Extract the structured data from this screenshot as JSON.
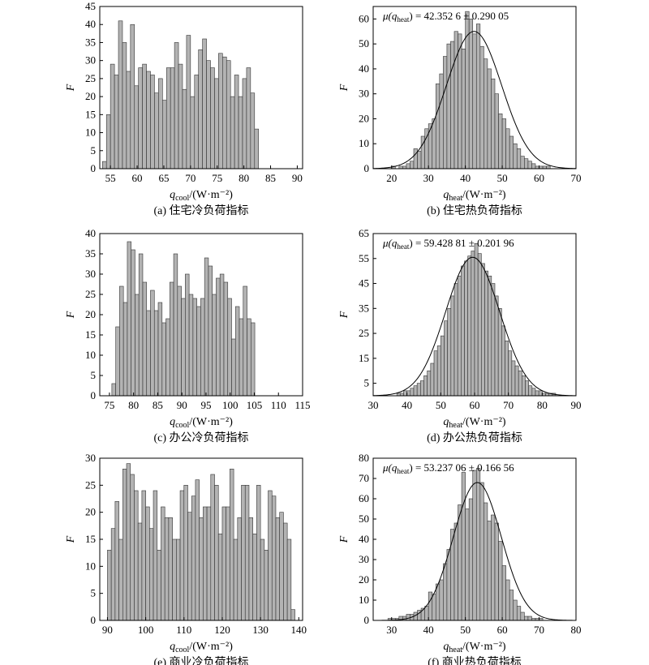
{
  "colors": {
    "bar_fill": "#b3b3b3",
    "bar_stroke": "#333333",
    "axis": "#000000",
    "fit_curve": "#000000"
  },
  "charts": [
    {
      "caption": "(a) 住宅冷负荷指标",
      "ylabel": "F",
      "xlabel_main": "q",
      "xlabel_sub": "cool",
      "xlabel_unit": "/(W·m⁻²)",
      "annotation_main": "",
      "annotation_sub": "",
      "annotation_value": "",
      "x_ticks": [
        "55",
        "60",
        "65",
        "70",
        "75",
        "80",
        "85",
        "90"
      ],
      "y_ticks": [
        "0",
        "5",
        "10",
        "15",
        "20",
        "25",
        "30",
        "35",
        "40",
        "45"
      ]
    },
    {
      "caption": "(b) 住宅热负荷指标",
      "ylabel": "F",
      "xlabel_main": "q",
      "xlabel_sub": "heat",
      "xlabel_unit": "/(W·m⁻²)",
      "annotation_main": "μ(q",
      "annotation_sub": "heat",
      "annotation_value": ") = 42.352 6 ± 0.290 05",
      "x_ticks": [
        "20",
        "30",
        "40",
        "50",
        "60",
        "70"
      ],
      "y_ticks": [
        "0",
        "10",
        "20",
        "30",
        "40",
        "50",
        "60"
      ]
    },
    {
      "caption": "(c) 办公冷负荷指标",
      "ylabel": "F",
      "xlabel_main": "q",
      "xlabel_sub": "cool",
      "xlabel_unit": "/(W·m⁻²)",
      "annotation_main": "",
      "annotation_sub": "",
      "annotation_value": "",
      "x_ticks": [
        "75",
        "80",
        "85",
        "90",
        "95",
        "100",
        "105",
        "110",
        "115"
      ],
      "y_ticks": [
        "0",
        "5",
        "10",
        "15",
        "20",
        "25",
        "30",
        "35",
        "40"
      ]
    },
    {
      "caption": "(d) 办公热负荷指标",
      "ylabel": "F",
      "xlabel_main": "q",
      "xlabel_sub": "heat",
      "xlabel_unit": "/(W·m⁻²)",
      "annotation_main": "μ(q",
      "annotation_sub": "heat",
      "annotation_value": ") = 59.428 81 ± 0.201 96",
      "x_ticks": [
        "30",
        "40",
        "50",
        "60",
        "70",
        "80",
        "90"
      ],
      "y_ticks": [
        "5",
        "15",
        "25",
        "35",
        "45",
        "55",
        "65"
      ]
    },
    {
      "caption": "(e) 商业冷负荷指标",
      "ylabel": "F",
      "xlabel_main": "q",
      "xlabel_sub": "cool",
      "xlabel_unit": "/(W·m⁻²)",
      "annotation_main": "",
      "annotation_sub": "",
      "annotation_value": "",
      "x_ticks": [
        "90",
        "100",
        "110",
        "120",
        "130",
        "140"
      ],
      "y_ticks": [
        "0",
        "5",
        "10",
        "15",
        "20",
        "25",
        "30"
      ]
    },
    {
      "caption": "(f) 商业热负荷指标",
      "ylabel": "F",
      "xlabel_main": "q",
      "xlabel_sub": "heat",
      "xlabel_unit": "/(W·m⁻²)",
      "annotation_main": "μ(q",
      "annotation_sub": "heat",
      "annotation_value": ") = 53.237 06 ± 0.166 56",
      "x_ticks": [
        "30",
        "40",
        "50",
        "60",
        "70",
        "80"
      ],
      "y_ticks": [
        "0",
        "10",
        "20",
        "30",
        "40",
        "50",
        "60",
        "70",
        "80"
      ]
    }
  ],
  "chart_data": [
    {
      "type": "bar",
      "xlim": [
        53,
        91
      ],
      "ylim": [
        0,
        45
      ],
      "x_tick_values": [
        55,
        60,
        65,
        70,
        75,
        80,
        85,
        90
      ],
      "y_tick_values": [
        0,
        5,
        10,
        15,
        20,
        25,
        30,
        35,
        40,
        45
      ],
      "bin_start": 53.5,
      "bin_width": 0.75,
      "values": [
        2,
        15,
        29,
        26,
        41,
        35,
        27,
        40,
        23,
        28,
        29,
        27,
        26,
        21,
        25,
        19,
        28,
        28,
        35,
        29,
        22,
        37,
        20,
        26,
        33,
        36,
        30,
        28,
        25,
        32,
        31,
        30,
        20,
        26,
        20,
        25,
        28,
        21,
        11
      ]
    },
    {
      "type": "bar",
      "xlim": [
        15,
        70
      ],
      "ylim": [
        0,
        65
      ],
      "x_tick_values": [
        20,
        30,
        40,
        50,
        60,
        70
      ],
      "y_tick_values": [
        0,
        10,
        20,
        30,
        40,
        50,
        60
      ],
      "bin_start": 20,
      "bin_width": 1,
      "values": [
        1,
        0,
        1,
        1,
        2,
        3,
        8,
        7,
        13,
        16,
        18,
        20,
        34,
        38,
        45,
        50,
        51,
        55,
        54,
        48,
        63,
        60,
        54,
        58,
        49,
        44,
        40,
        36,
        30,
        22,
        20,
        16,
        13,
        10,
        8,
        5,
        4,
        3,
        2,
        1,
        1,
        1,
        1
      ],
      "fit": {
        "type": "gaussian",
        "mean": 42.35,
        "sd": 7.5,
        "peak": 55
      }
    },
    {
      "type": "bar",
      "xlim": [
        73,
        115
      ],
      "ylim": [
        0,
        40
      ],
      "x_tick_values": [
        75,
        80,
        85,
        90,
        95,
        100,
        105,
        110,
        115
      ],
      "y_tick_values": [
        0,
        5,
        10,
        15,
        20,
        25,
        30,
        35,
        40
      ],
      "bin_start": 75.5,
      "bin_width": 0.8,
      "values": [
        3,
        17,
        27,
        23,
        38,
        36,
        25,
        35,
        28,
        21,
        26,
        21,
        23,
        18,
        19,
        28,
        35,
        27,
        24,
        30,
        25,
        24,
        22,
        24,
        34,
        32,
        25,
        29,
        30,
        28,
        24,
        14,
        22,
        19,
        27,
        19,
        18
      ]
    },
    {
      "type": "bar",
      "xlim": [
        30,
        90
      ],
      "ylim": [
        0,
        65
      ],
      "x_tick_values": [
        30,
        40,
        50,
        60,
        70,
        80,
        90
      ],
      "y_tick_values": [
        5,
        15,
        25,
        35,
        45,
        55,
        65
      ],
      "bin_start": 37,
      "bin_width": 1,
      "values": [
        1,
        1,
        2,
        2,
        3,
        4,
        5,
        6,
        8,
        10,
        13,
        18,
        20,
        24,
        30,
        35,
        40,
        45,
        48,
        52,
        54,
        56,
        58,
        61,
        57,
        53,
        50,
        48,
        45,
        40,
        35,
        28,
        22,
        18,
        14,
        12,
        10,
        8,
        6,
        4,
        3,
        2,
        2,
        1,
        1,
        1,
        1
      ],
      "fit": {
        "type": "gaussian",
        "mean": 59.43,
        "sd": 8.0,
        "peak": 55.5
      }
    },
    {
      "type": "bar",
      "xlim": [
        88,
        141
      ],
      "ylim": [
        0,
        30
      ],
      "x_tick_values": [
        90,
        100,
        110,
        120,
        130,
        140
      ],
      "y_tick_values": [
        0,
        5,
        10,
        15,
        20,
        25,
        30
      ],
      "bin_start": 90,
      "bin_width": 1,
      "values": [
        13,
        17,
        22,
        15,
        28,
        29,
        27,
        24,
        18,
        24,
        21,
        17,
        24,
        13,
        21,
        19,
        19,
        15,
        15,
        24,
        25,
        20,
        23,
        26,
        19,
        21,
        21,
        27,
        25,
        16,
        21,
        21,
        28,
        15,
        19,
        25,
        25,
        19,
        16,
        25,
        15,
        13,
        24,
        23,
        19,
        20,
        18,
        15,
        2
      ]
    },
    {
      "type": "bar",
      "xlim": [
        25,
        80
      ],
      "ylim": [
        0,
        80
      ],
      "x_tick_values": [
        30,
        40,
        50,
        60,
        70,
        80
      ],
      "y_tick_values": [
        0,
        10,
        20,
        30,
        40,
        50,
        60,
        70,
        80
      ],
      "bin_start": 29,
      "bin_width": 1,
      "values": [
        1,
        1,
        1,
        2,
        2,
        3,
        3,
        4,
        5,
        6,
        7,
        14,
        13,
        18,
        20,
        28,
        35,
        45,
        48,
        57,
        73,
        55,
        60,
        74,
        75,
        68,
        58,
        49,
        52,
        48,
        39,
        27,
        20,
        15,
        10,
        7,
        4,
        2,
        2,
        1,
        1,
        1
      ],
      "fit": {
        "type": "gaussian",
        "mean": 53.24,
        "sd": 6.5,
        "peak": 68
      }
    }
  ]
}
